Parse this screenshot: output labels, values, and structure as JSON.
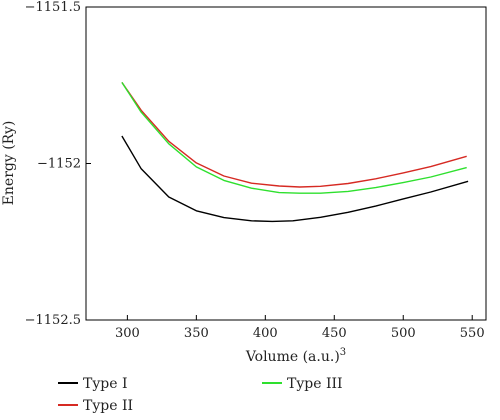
{
  "chart_data": {
    "type": "line",
    "title": "",
    "xlabel": "Volume (a.u.)",
    "xlabel_superscript": "3",
    "ylabel": "Energy (Ry)",
    "xlim": [
      270,
      560
    ],
    "ylim": [
      -1152.5,
      -1151.5
    ],
    "x_ticks": [
      300,
      350,
      400,
      450,
      500,
      550
    ],
    "x_tick_labels": [
      "300",
      "350",
      "400",
      "450",
      "500",
      "550"
    ],
    "y_ticks": [
      -1151.5,
      -1152,
      -1152.5
    ],
    "y_tick_labels": [
      "−1151.5",
      "−1152",
      "−1152.5"
    ],
    "grid": false,
    "legend_position": "bottom",
    "series": [
      {
        "name": "Type I",
        "color": "#000000",
        "x": [
          296,
          310,
          330,
          350,
          370,
          390,
          405,
          420,
          440,
          460,
          480,
          500,
          520,
          547
        ],
        "y": [
          -1151.912,
          -1152.017,
          -1152.107,
          -1152.151,
          -1152.173,
          -1152.183,
          -1152.185,
          -1152.183,
          -1152.172,
          -1152.156,
          -1152.136,
          -1152.113,
          -1152.091,
          -1152.057
        ]
      },
      {
        "name": "Type II",
        "color": "#d62a23",
        "x": [
          296,
          310,
          330,
          350,
          370,
          390,
          410,
          425,
          440,
          460,
          480,
          500,
          520,
          546
        ],
        "y": [
          -1151.741,
          -1151.83,
          -1151.929,
          -1151.998,
          -1152.04,
          -1152.063,
          -1152.072,
          -1152.075,
          -1152.073,
          -1152.064,
          -1152.049,
          -1152.03,
          -1152.01,
          -1151.977
        ]
      },
      {
        "name": "Type III",
        "color": "#2ee02e",
        "x": [
          296,
          310,
          330,
          350,
          370,
          390,
          410,
          425,
          440,
          460,
          480,
          500,
          520,
          546
        ],
        "y": [
          -1151.741,
          -1151.836,
          -1151.937,
          -1152.011,
          -1152.054,
          -1152.079,
          -1152.093,
          -1152.095,
          -1152.095,
          -1152.089,
          -1152.077,
          -1152.061,
          -1152.043,
          -1152.013
        ]
      }
    ]
  }
}
